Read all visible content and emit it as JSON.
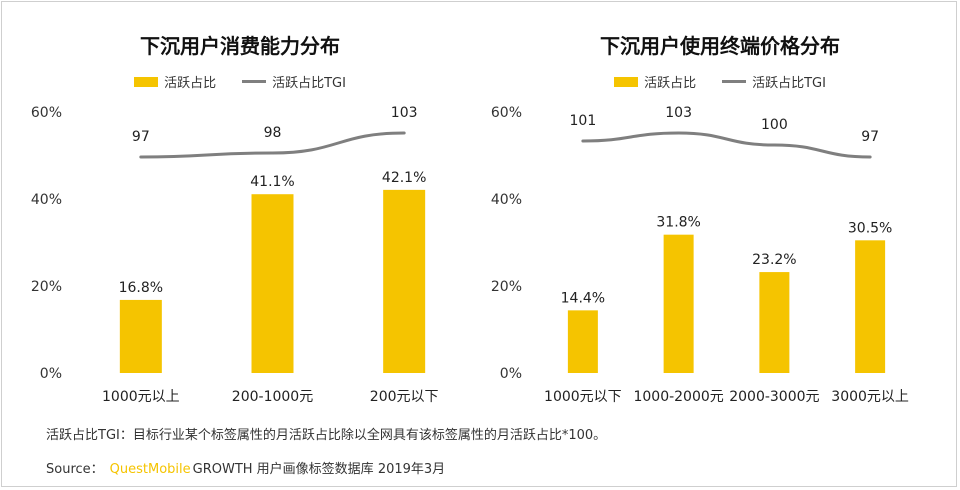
{
  "colors": {
    "bar": "#f5c400",
    "tgi_line": "#7f7f7f",
    "axis_text": "#333333"
  },
  "legend": {
    "bar_label": "活跃占比",
    "line_label": "活跃占比TGI"
  },
  "chart_data": [
    {
      "type": "bar",
      "title": "下沉用户消费能力分布",
      "categories": [
        "1000元以上",
        "200-1000元",
        "200元以下"
      ],
      "series": [
        {
          "name": "活跃占比",
          "values": [
            16.8,
            41.1,
            42.1
          ],
          "labels": [
            "16.8%",
            "41.1%",
            "42.1%"
          ]
        },
        {
          "name": "活跃占比TGI",
          "values": [
            97,
            98,
            103
          ],
          "labels": [
            "97",
            "98",
            "103"
          ],
          "type": "line"
        }
      ],
      "yticks": [
        "0%",
        "20%",
        "40%",
        "60%"
      ],
      "ylim": [
        0,
        60
      ],
      "tgi_range": [
        85,
        110
      ],
      "legend_position": "top-center",
      "grid": false
    },
    {
      "type": "bar",
      "title": "下沉用户使用终端价格分布",
      "categories": [
        "1000元以下",
        "1000-2000元",
        "2000-3000元",
        "3000元以上"
      ],
      "series": [
        {
          "name": "活跃占比",
          "values": [
            14.4,
            31.8,
            23.2,
            30.5
          ],
          "labels": [
            "14.4%",
            "31.8%",
            "23.2%",
            "30.5%"
          ]
        },
        {
          "name": "活跃占比TGI",
          "values": [
            101,
            103,
            100,
            97
          ],
          "labels": [
            "101",
            "103",
            "100",
            "97"
          ],
          "type": "line"
        }
      ],
      "yticks": [
        "0%",
        "20%",
        "40%",
        "60%"
      ],
      "ylim": [
        0,
        60
      ],
      "tgi_range": [
        85,
        110
      ],
      "legend_position": "top-center",
      "grid": false
    }
  ],
  "footnote": "活跃占比TGI：目标行业某个标签属性的月活跃占比除以全网具有该标签属性的月活跃占比*100。",
  "source": {
    "prefix": "Source：",
    "brand": "QuestMobile",
    "rest": "GROWTH 用户画像标签数据库 2019年3月"
  }
}
